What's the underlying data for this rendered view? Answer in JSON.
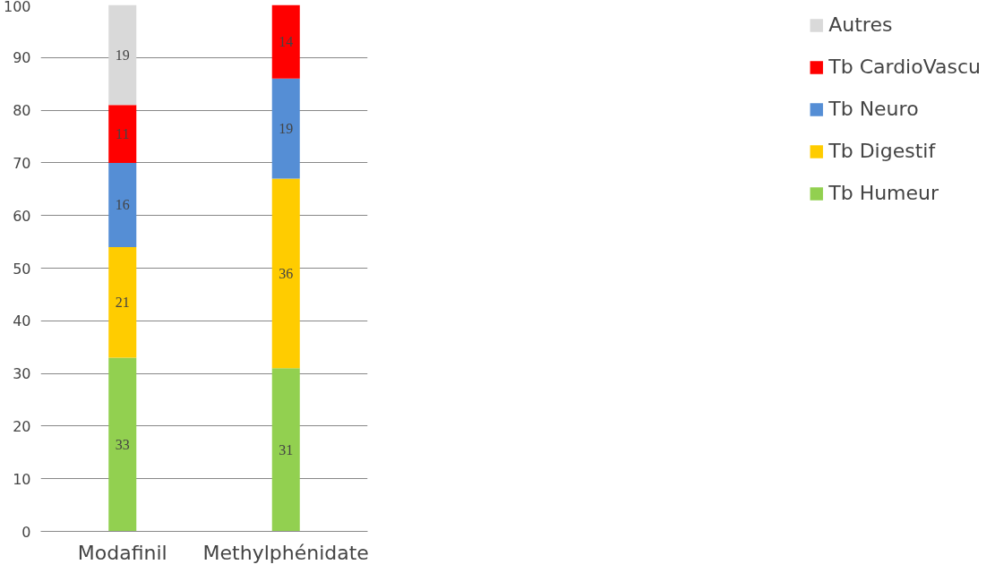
{
  "chart_data": {
    "type": "bar",
    "stacked": true,
    "categories": [
      "Modafinil",
      "Methylphénidate"
    ],
    "series": [
      {
        "name": "Tb Humeur",
        "color": "#92d050",
        "values": [
          33,
          31
        ]
      },
      {
        "name": "Tb Digestif",
        "color": "#ffcc00",
        "values": [
          21,
          36
        ]
      },
      {
        "name": "Tb Neuro",
        "color": "#558ed5",
        "values": [
          16,
          19
        ]
      },
      {
        "name": "Tb CardioVascu",
        "color": "#ff0000",
        "values": [
          11,
          14
        ]
      },
      {
        "name": "Autres",
        "color": "#d9d9d9",
        "values": [
          19,
          null
        ]
      }
    ],
    "ylim": [
      0,
      100
    ],
    "yticks": [
      0,
      10,
      20,
      30,
      40,
      50,
      60,
      70,
      80,
      90,
      100
    ],
    "grid": "y",
    "legend": "right",
    "data_labels": true
  }
}
